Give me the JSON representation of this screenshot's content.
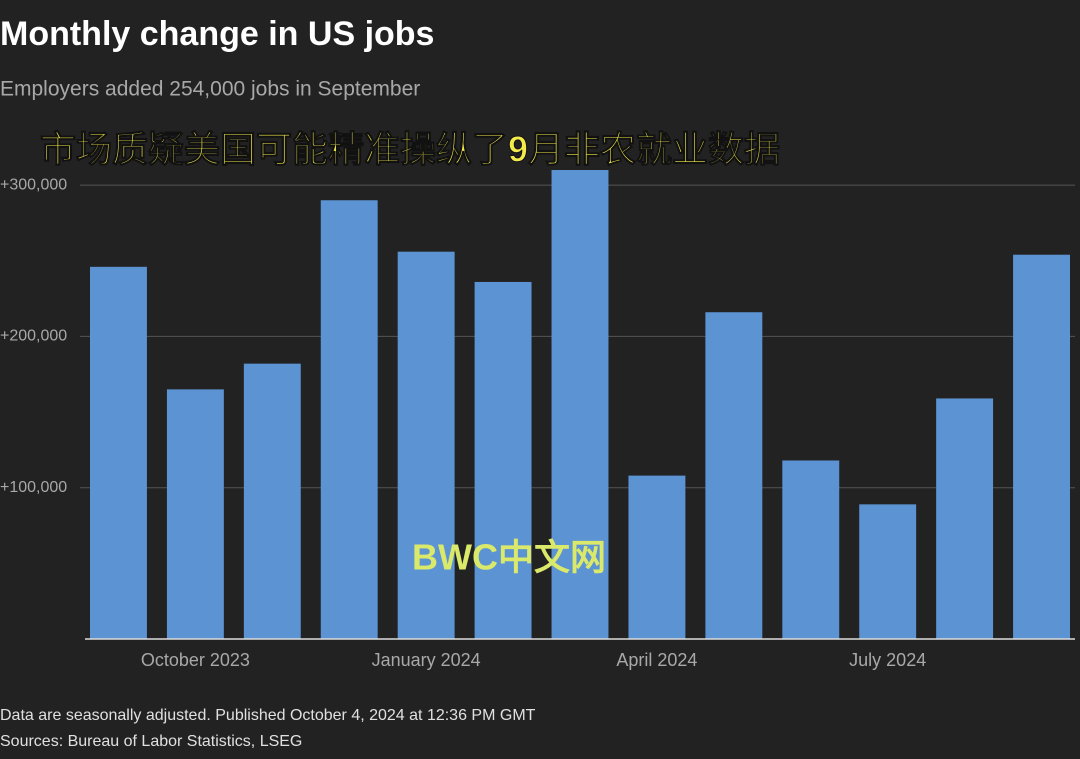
{
  "chart_data": {
    "type": "bar",
    "title": "Monthly change in US jobs",
    "subtitle": "Employers added 254,000 jobs in September",
    "annotations": [
      "市场质疑美国可能精准操纵了9月非农就业数据",
      "BWC中文网"
    ],
    "notes": [
      "Data are seasonally adjusted. Published October 4, 2024 at 12:36 PM GMT",
      "Sources: Bureau of Labor Statistics, LSEG"
    ],
    "categories": [
      null,
      "October 2023",
      null,
      null,
      "January 2024",
      null,
      null,
      "April 2024",
      null,
      null,
      "July 2024",
      null,
      null
    ],
    "values": [
      246000,
      165000,
      182000,
      290000,
      256000,
      236000,
      310000,
      108000,
      216000,
      118000,
      89000,
      159000,
      254000
    ],
    "color": "#5b93d3",
    "ylim": [
      0,
      310000
    ],
    "yticks": [
      {
        "value": 100000,
        "label": "+100,000"
      },
      {
        "value": 200000,
        "label": "+200,000"
      },
      {
        "value": 300000,
        "label": "+300,000"
      }
    ],
    "grid": true
  }
}
